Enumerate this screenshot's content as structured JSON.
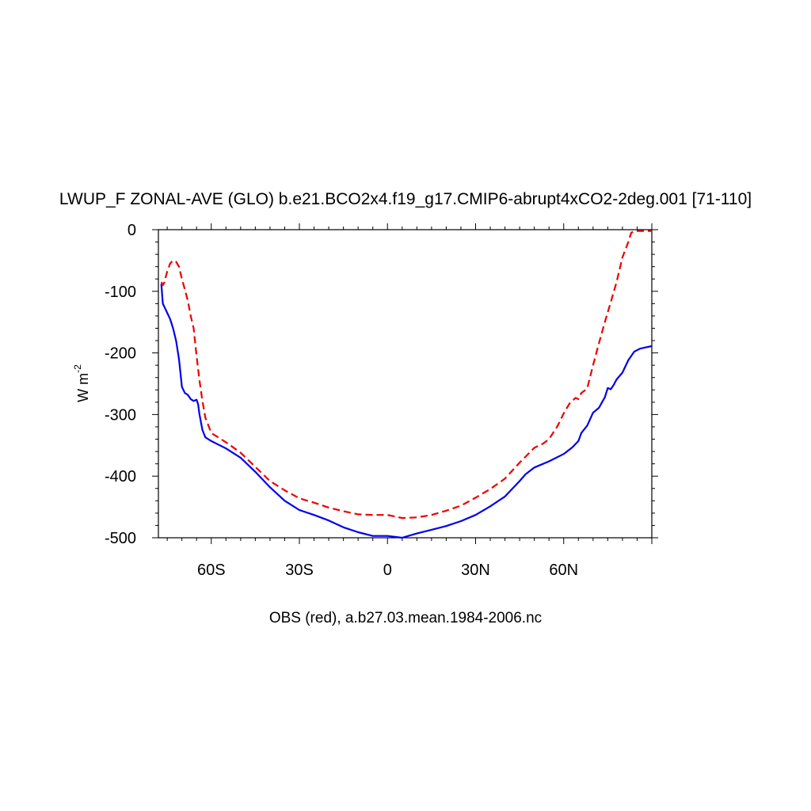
{
  "chart_data": {
    "type": "line",
    "title": "LWUP_F ZONAL-AVE (GLO) b.e21.BCO2x4.f19_g17.CMIP6-abrupt4xCO2-2deg.001 [71-110]",
    "ylabel_main": "W m",
    "ylabel_sup": "-2",
    "footer": "OBS (red), a.b27.03.mean.1984-2006.nc",
    "xlim": [
      -78,
      90
    ],
    "ylim": [
      -500,
      0
    ],
    "grid": false,
    "xticks": [
      {
        "value": -60,
        "label": "60S"
      },
      {
        "value": -30,
        "label": "30S"
      },
      {
        "value": 0,
        "label": "0"
      },
      {
        "value": 30,
        "label": "30N"
      },
      {
        "value": 60,
        "label": "60N"
      }
    ],
    "yticks": [
      {
        "value": 0,
        "label": "0"
      },
      {
        "value": -100,
        "label": "-100"
      },
      {
        "value": -200,
        "label": "-200"
      },
      {
        "value": -300,
        "label": "-300"
      },
      {
        "value": -400,
        "label": "-400"
      },
      {
        "value": -500,
        "label": "-500"
      }
    ],
    "series": [
      {
        "color": "#0000ee",
        "dash": "solid",
        "points": [
          [
            -77,
            -88
          ],
          [
            -76.5,
            -120
          ],
          [
            -75.5,
            -130
          ],
          [
            -74,
            -145
          ],
          [
            -73,
            -160
          ],
          [
            -72,
            -180
          ],
          [
            -71,
            -210
          ],
          [
            -70,
            -255
          ],
          [
            -69,
            -265
          ],
          [
            -68,
            -268
          ],
          [
            -67,
            -275
          ],
          [
            -66,
            -278
          ],
          [
            -65,
            -276
          ],
          [
            -64.5,
            -283
          ],
          [
            -64,
            -300
          ],
          [
            -63,
            -325
          ],
          [
            -62,
            -337
          ],
          [
            -60,
            -343
          ],
          [
            -55,
            -355
          ],
          [
            -50,
            -370
          ],
          [
            -45,
            -393
          ],
          [
            -40,
            -418
          ],
          [
            -35,
            -440
          ],
          [
            -30,
            -455
          ],
          [
            -25,
            -463
          ],
          [
            -20,
            -472
          ],
          [
            -15,
            -483
          ],
          [
            -10,
            -491
          ],
          [
            -5,
            -497
          ],
          [
            0,
            -497
          ],
          [
            5,
            -500
          ],
          [
            10,
            -493
          ],
          [
            15,
            -487
          ],
          [
            20,
            -481
          ],
          [
            25,
            -473
          ],
          [
            30,
            -463
          ],
          [
            35,
            -449
          ],
          [
            40,
            -433
          ],
          [
            45,
            -408
          ],
          [
            47,
            -397
          ],
          [
            50,
            -386
          ],
          [
            55,
            -376
          ],
          [
            60,
            -364
          ],
          [
            63,
            -353
          ],
          [
            65,
            -343
          ],
          [
            66,
            -330
          ],
          [
            68,
            -318
          ],
          [
            70,
            -297
          ],
          [
            72,
            -289
          ],
          [
            74,
            -272
          ],
          [
            75,
            -257
          ],
          [
            76,
            -259
          ],
          [
            77,
            -252
          ],
          [
            78,
            -243
          ],
          [
            80,
            -232
          ],
          [
            82,
            -212
          ],
          [
            84,
            -198
          ],
          [
            86,
            -193
          ],
          [
            88,
            -191
          ],
          [
            90,
            -189
          ]
        ]
      },
      {
        "color": "#ee0000",
        "dash": "dashed",
        "points": [
          [
            -77,
            -85
          ],
          [
            -76.5,
            -90
          ],
          [
            -76,
            -86
          ],
          [
            -75,
            -68
          ],
          [
            -74,
            -55
          ],
          [
            -73,
            -50
          ],
          [
            -72,
            -52
          ],
          [
            -71,
            -60
          ],
          [
            -70,
            -80
          ],
          [
            -69,
            -97
          ],
          [
            -68,
            -115
          ],
          [
            -67,
            -140
          ],
          [
            -66,
            -160
          ],
          [
            -65,
            -205
          ],
          [
            -64,
            -245
          ],
          [
            -63,
            -278
          ],
          [
            -62,
            -305
          ],
          [
            -60,
            -330
          ],
          [
            -55,
            -345
          ],
          [
            -50,
            -362
          ],
          [
            -45,
            -385
          ],
          [
            -40,
            -408
          ],
          [
            -35,
            -423
          ],
          [
            -30,
            -436
          ],
          [
            -25,
            -443
          ],
          [
            -20,
            -451
          ],
          [
            -15,
            -457
          ],
          [
            -10,
            -462
          ],
          [
            -5,
            -463
          ],
          [
            0,
            -463
          ],
          [
            5,
            -468
          ],
          [
            10,
            -467
          ],
          [
            15,
            -463
          ],
          [
            20,
            -456
          ],
          [
            25,
            -448
          ],
          [
            30,
            -435
          ],
          [
            35,
            -421
          ],
          [
            40,
            -404
          ],
          [
            45,
            -378
          ],
          [
            50,
            -354
          ],
          [
            53,
            -347
          ],
          [
            55,
            -340
          ],
          [
            58,
            -318
          ],
          [
            60,
            -298
          ],
          [
            62,
            -282
          ],
          [
            64,
            -273
          ],
          [
            65,
            -275
          ],
          [
            66,
            -265
          ],
          [
            68,
            -258
          ],
          [
            70,
            -220
          ],
          [
            72,
            -184
          ],
          [
            74,
            -150
          ],
          [
            76,
            -118
          ],
          [
            78,
            -85
          ],
          [
            80,
            -45
          ],
          [
            82,
            -20
          ],
          [
            83,
            -5
          ],
          [
            84,
            -2
          ],
          [
            90,
            -2
          ]
        ]
      }
    ]
  }
}
